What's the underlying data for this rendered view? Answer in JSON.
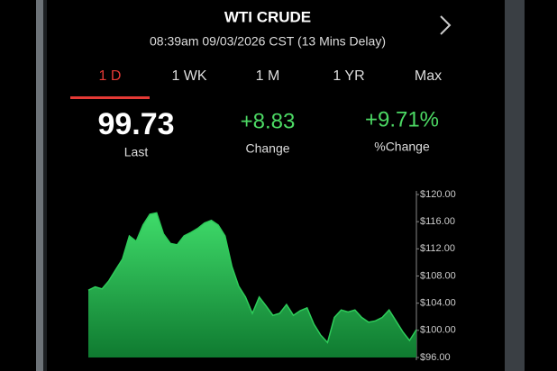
{
  "header": {
    "title": "WTI CRUDE",
    "subtitle": "08:39am 09/03/2026 CST (13 Mins Delay)"
  },
  "tabs": [
    "1 D",
    "1 WK",
    "1 M",
    "1 YR",
    "Max"
  ],
  "quote": [
    {
      "value": "99.73",
      "label": "Last"
    },
    {
      "value": "+8.83",
      "label": "Change"
    },
    {
      "value": "+9.71%",
      "label": "%Change"
    }
  ],
  "chart_data": {
    "type": "area",
    "color": "#2ecc5a",
    "values": [
      105.9,
      106.4,
      106.1,
      107.3,
      108.9,
      110.5,
      113.9,
      113.1,
      115.5,
      117.1,
      117.3,
      114.2,
      112.8,
      112.6,
      113.9,
      114.4,
      115.0,
      115.8,
      116.2,
      115.5,
      113.9,
      109.4,
      106.5,
      104.9,
      102.5,
      104.9,
      103.6,
      102.2,
      102.5,
      103.8,
      102.2,
      102.9,
      103.3,
      100.9,
      99.3,
      98.2,
      101.9,
      103.0,
      102.7,
      103.0,
      101.9,
      101.2,
      101.4,
      101.9,
      103.0,
      101.4,
      99.8,
      98.5,
      100.1
    ],
    "ylim": [
      96,
      120
    ],
    "yticks": [
      {
        "value": 96,
        "label": "$96.00"
      },
      {
        "value": 100,
        "label": "$100.00"
      },
      {
        "value": 104,
        "label": "$104.00"
      },
      {
        "value": 108,
        "label": "$108.00"
      },
      {
        "value": 112,
        "label": "$112.00"
      },
      {
        "value": 116,
        "label": "$116.00"
      },
      {
        "value": 120,
        "label": "$120.00"
      }
    ]
  }
}
